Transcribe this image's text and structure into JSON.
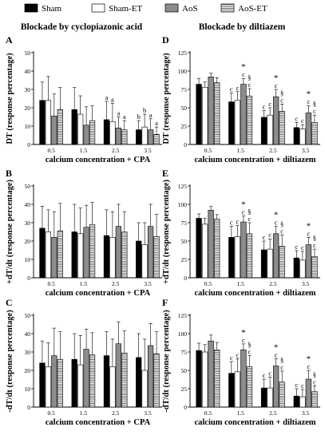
{
  "legend": {
    "items": [
      {
        "label": "Sham",
        "fill": "#000000",
        "pattern": "solid"
      },
      {
        "label": "Sham-ET",
        "fill": "#ffffff",
        "pattern": "none"
      },
      {
        "label": "AoS",
        "fill": "#8c8c8c",
        "pattern": "solid"
      },
      {
        "label": "AoS-ET",
        "fill": "#ffffff",
        "pattern": "horizontal-lines"
      }
    ]
  },
  "column_titles": [
    "Blockade by cyclopiazonic acid",
    "Blockade by diltiazem"
  ],
  "chart_data": [
    {
      "panel": "A",
      "type": "bar",
      "ylabel": "DT (response percentage)",
      "xlabel": "calcium concentration + CPA",
      "categories": [
        "0.5",
        "1.5",
        "2.5",
        "3.5"
      ],
      "ylim": [
        0,
        50
      ],
      "yticks": [
        0,
        10,
        20,
        30,
        40,
        50
      ],
      "series": [
        {
          "name": "Sham",
          "values": [
            24,
            19,
            13.5,
            8
          ],
          "errors": [
            10,
            12,
            10,
            5
          ]
        },
        {
          "name": "Sham-ET",
          "values": [
            24,
            16.5,
            12.5,
            9.5
          ],
          "errors": [
            13,
            10,
            10,
            7
          ]
        },
        {
          "name": "AoS",
          "values": [
            15.5,
            10.5,
            9,
            8
          ],
          "errors": [
            12,
            10,
            6,
            6
          ]
        },
        {
          "name": "AoS-ET",
          "values": [
            19,
            13,
            8,
            5.5
          ],
          "errors": [
            12,
            8,
            5,
            4
          ]
        }
      ],
      "annotations": [
        [
          "",
          "",
          "",
          ""
        ],
        [
          "",
          "",
          "",
          ""
        ],
        [
          "a",
          "a",
          "a",
          "a"
        ],
        [
          "b",
          "b",
          "a",
          "a"
        ]
      ]
    },
    {
      "panel": "B",
      "type": "bar",
      "ylabel": "+dT/dt (response percentage)",
      "xlabel": "calcium concentration + CPA",
      "categories": [
        "0.5",
        "1.5",
        "2.5",
        "3.5"
      ],
      "ylim": [
        0,
        50
      ],
      "yticks": [
        0,
        10,
        20,
        30,
        40,
        50
      ],
      "series": [
        {
          "name": "Sham",
          "values": [
            27,
            25,
            23,
            20
          ],
          "errors": [
            12,
            15,
            14,
            10
          ]
        },
        {
          "name": "Sham-ET",
          "values": [
            25,
            24,
            22,
            18
          ],
          "errors": [
            12,
            14,
            14,
            12
          ]
        },
        {
          "name": "AoS",
          "values": [
            22,
            27.5,
            28,
            28
          ],
          "errors": [
            14,
            12,
            12,
            12
          ]
        },
        {
          "name": "AoS-ET",
          "values": [
            25.5,
            29,
            25,
            22.5
          ],
          "errors": [
            15,
            12,
            11,
            12
          ]
        }
      ],
      "annotations": [
        [
          "",
          "",
          "",
          ""
        ],
        [
          "",
          "",
          "",
          ""
        ],
        [
          "",
          "",
          "",
          ""
        ],
        [
          "",
          "",
          "",
          ""
        ]
      ]
    },
    {
      "panel": "C",
      "type": "bar",
      "ylabel": "-dT/dt (response percentage)",
      "xlabel": "calcium concentration + CPA",
      "categories": [
        "0.5",
        "1.5",
        "2.5",
        "3.5"
      ],
      "ylim": [
        0,
        50
      ],
      "yticks": [
        0,
        10,
        20,
        30,
        40,
        50
      ],
      "series": [
        {
          "name": "Sham",
          "values": [
            24,
            26,
            28,
            27
          ],
          "errors": [
            12,
            14,
            13,
            13
          ]
        },
        {
          "name": "Sham-ET",
          "values": [
            22,
            23,
            22,
            20
          ],
          "errors": [
            13,
            16,
            15,
            17
          ]
        },
        {
          "name": "AoS",
          "values": [
            28,
            31.5,
            34.5,
            33.5
          ],
          "errors": [
            15,
            11,
            12,
            12
          ]
        },
        {
          "name": "AoS-ET",
          "values": [
            26,
            28.5,
            29.5,
            29
          ],
          "errors": [
            15,
            12,
            12,
            12
          ]
        }
      ],
      "annotations": [
        [
          "",
          "",
          "",
          ""
        ],
        [
          "",
          "",
          "",
          ""
        ],
        [
          "",
          "",
          "",
          ""
        ],
        [
          "",
          "",
          "",
          ""
        ]
      ]
    },
    {
      "panel": "D",
      "type": "bar",
      "ylabel": "DT (response percentage)",
      "xlabel": "calcium concentration + diltiazem",
      "categories": [
        "0.5",
        "1.5",
        "2.5",
        "3.5"
      ],
      "ylim": [
        0,
        125
      ],
      "yticks": [
        0,
        25,
        50,
        75,
        100,
        125
      ],
      "series": [
        {
          "name": "Sham",
          "values": [
            82,
            58,
            37,
            23
          ],
          "errors": [
            8,
            12,
            9,
            7
          ]
        },
        {
          "name": "Sham-ET",
          "values": [
            78,
            60,
            40,
            21
          ],
          "errors": [
            7,
            12,
            10,
            6
          ]
        },
        {
          "name": "AoS",
          "values": [
            92,
            82,
            65,
            43
          ],
          "errors": [
            5,
            8,
            10,
            10
          ]
        },
        {
          "name": "AoS-ET",
          "values": [
            84,
            66,
            45,
            30
          ],
          "errors": [
            7,
            10,
            10,
            10
          ]
        }
      ],
      "annotations": [
        [
          "",
          "",
          "",
          ""
        ],
        [
          "c",
          "c",
          "*\nc",
          "§\nc"
        ],
        [
          "c",
          "c",
          "*\nc",
          "§\nc"
        ],
        [
          "c",
          "c",
          "*\nc",
          "§\nc"
        ]
      ]
    },
    {
      "panel": "E",
      "type": "bar",
      "ylabel": "+dT/dt (response percentage)",
      "xlabel": "calcium concentration + diltiazem",
      "categories": [
        "0.5",
        "1.5",
        "2.5",
        "3.5"
      ],
      "ylim": [
        0,
        125
      ],
      "yticks": [
        0,
        25,
        50,
        75,
        100,
        125
      ],
      "series": [
        {
          "name": "Sham",
          "values": [
            81,
            55,
            38,
            27
          ],
          "errors": [
            6,
            15,
            12,
            10
          ]
        },
        {
          "name": "Sham-ET",
          "values": [
            73,
            56,
            39,
            24
          ],
          "errors": [
            8,
            15,
            14,
            12
          ]
        },
        {
          "name": "AoS",
          "values": [
            92,
            76,
            60,
            45
          ],
          "errors": [
            5,
            8,
            10,
            10
          ]
        },
        {
          "name": "AoS-ET",
          "values": [
            80,
            60,
            43,
            29
          ],
          "errors": [
            6,
            15,
            15,
            10
          ]
        }
      ],
      "annotations": [
        [
          "",
          "",
          "",
          ""
        ],
        [
          "c",
          "c",
          "*\nc",
          "§\nc"
        ],
        [
          "c",
          "c",
          "*\nc",
          "§\nc"
        ],
        [
          "c",
          "c",
          "*\nc",
          "§\nc"
        ]
      ]
    },
    {
      "panel": "F",
      "type": "bar",
      "ylabel": "-dT/dt (response percentage)",
      "xlabel": "calcium concentration + diltiazem",
      "categories": [
        "0.5",
        "1.5",
        "2.5",
        "3.5"
      ],
      "ylim": [
        0,
        125
      ],
      "yticks": [
        0,
        25,
        50,
        75,
        100,
        125
      ],
      "series": [
        {
          "name": "Sham",
          "values": [
            77,
            46,
            26,
            15
          ],
          "errors": [
            10,
            16,
            12,
            10
          ]
        },
        {
          "name": "Sham-ET",
          "values": [
            75,
            48,
            26,
            14
          ],
          "errors": [
            10,
            18,
            15,
            10
          ]
        },
        {
          "name": "AoS",
          "values": [
            90,
            78,
            56,
            38
          ],
          "errors": [
            8,
            8,
            10,
            12
          ]
        },
        {
          "name": "AoS-ET",
          "values": [
            78,
            55,
            34,
            21
          ],
          "errors": [
            10,
            15,
            15,
            8
          ]
        }
      ],
      "annotations": [
        [
          "",
          "",
          "",
          ""
        ],
        [
          "c",
          "c",
          "*\nc",
          "§\nc"
        ],
        [
          "c",
          "c",
          "*\nc",
          "§\nc"
        ],
        [
          "c",
          "c",
          "*\nc",
          "§\nc"
        ]
      ]
    }
  ]
}
